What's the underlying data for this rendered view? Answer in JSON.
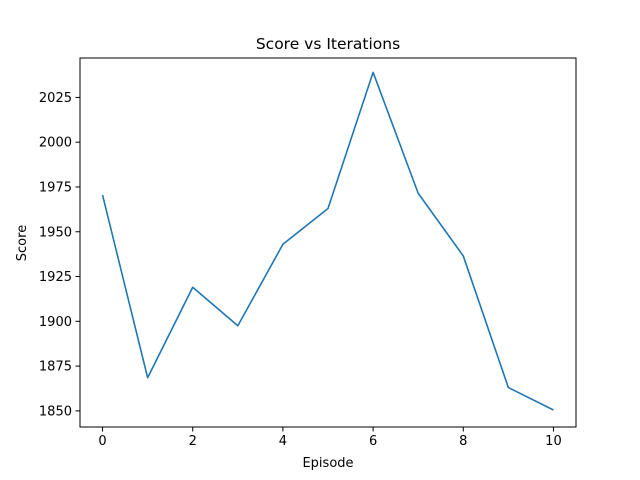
{
  "chart_data": {
    "type": "line",
    "title": "Score vs Iterations",
    "xlabel": "Episode",
    "ylabel": "Score",
    "x": [
      0,
      1,
      2,
      3,
      4,
      5,
      6,
      7,
      8,
      9,
      10
    ],
    "series": [
      {
        "name": "Score",
        "color": "#1f77b4",
        "values": [
          1970.5,
          1868.5,
          1919,
          1897.5,
          1943,
          1963,
          2039,
          1971.5,
          1936.5,
          1863,
          1850.5
        ]
      }
    ],
    "xlim": [
      -0.5,
      10.5
    ],
    "ylim": [
      1841,
      2047
    ],
    "xticks": [
      0,
      2,
      4,
      6,
      8,
      10
    ],
    "xtick_labels": [
      "0",
      "2",
      "4",
      "6",
      "8",
      "10"
    ],
    "yticks": [
      1850,
      1875,
      1900,
      1925,
      1950,
      1975,
      2000,
      2025
    ],
    "ytick_labels": [
      "1850",
      "1875",
      "1900",
      "1925",
      "1950",
      "1975",
      "2000",
      "2025"
    ],
    "grid": false,
    "legend": "none"
  }
}
